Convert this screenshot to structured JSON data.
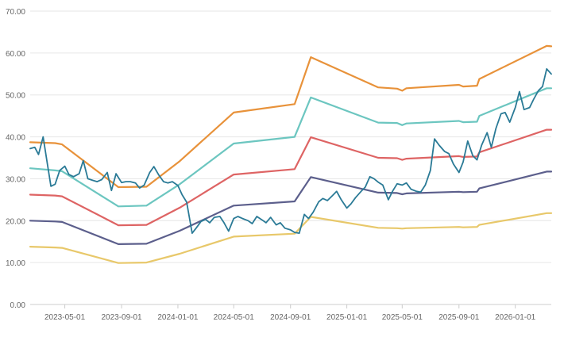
{
  "chart_data": {
    "type": "line",
    "title": "",
    "xlabel": "",
    "ylabel": "",
    "ylim": [
      0,
      70
    ],
    "xlim": [
      "2023-02-15",
      "2026-03-20"
    ],
    "grid": "horizontal",
    "y_ticks": [
      "0.00",
      "10.00",
      "20.00",
      "30.00",
      "40.00",
      "50.00",
      "60.00",
      "70.00"
    ],
    "x_ticks": [
      "2023-05-01",
      "2023-09-01",
      "2024-01-01",
      "2024-05-01",
      "2024-09-01",
      "2025-01-01",
      "2025-05-01",
      "2025-09-01",
      "2026-01-01"
    ],
    "series": [
      {
        "color": "#e8923a",
        "points": [
          [
            "2023-02-15",
            38.7
          ],
          [
            "2023-04-10",
            38.5
          ],
          [
            "2023-04-25",
            38.2
          ],
          [
            "2023-08-25",
            28.0
          ],
          [
            "2023-10-25",
            28.1
          ],
          [
            "2024-01-05",
            34.2
          ],
          [
            "2024-05-01",
            45.8
          ],
          [
            "2024-09-10",
            47.8
          ],
          [
            "2024-10-15",
            59.0
          ],
          [
            "2025-03-10",
            51.8
          ],
          [
            "2025-04-20",
            51.5
          ],
          [
            "2025-05-01",
            51.0
          ],
          [
            "2025-05-10",
            51.6
          ],
          [
            "2025-09-01",
            52.4
          ],
          [
            "2025-09-10",
            52.0
          ],
          [
            "2025-10-10",
            52.2
          ],
          [
            "2025-10-15",
            53.8
          ],
          [
            "2026-03-10",
            61.7
          ],
          [
            "2026-03-20",
            61.6
          ]
        ]
      },
      {
        "color": "#6cc6c0",
        "points": [
          [
            "2023-02-15",
            32.5
          ],
          [
            "2023-04-10",
            32.0
          ],
          [
            "2023-04-25",
            31.8
          ],
          [
            "2023-08-25",
            23.4
          ],
          [
            "2023-10-25",
            23.6
          ],
          [
            "2024-01-05",
            28.7
          ],
          [
            "2024-05-01",
            38.4
          ],
          [
            "2024-09-10",
            40.0
          ],
          [
            "2024-10-15",
            49.4
          ],
          [
            "2025-03-10",
            43.4
          ],
          [
            "2025-04-20",
            43.3
          ],
          [
            "2025-05-01",
            42.8
          ],
          [
            "2025-05-10",
            43.2
          ],
          [
            "2025-09-01",
            43.8
          ],
          [
            "2025-09-10",
            43.5
          ],
          [
            "2025-10-10",
            43.6
          ],
          [
            "2025-10-15",
            45.0
          ],
          [
            "2026-03-10",
            51.6
          ],
          [
            "2026-03-20",
            51.6
          ]
        ]
      },
      {
        "color": "#de6464",
        "points": [
          [
            "2023-02-15",
            26.2
          ],
          [
            "2023-04-10",
            26.0
          ],
          [
            "2023-04-25",
            25.8
          ],
          [
            "2023-08-25",
            18.9
          ],
          [
            "2023-10-25",
            19.0
          ],
          [
            "2024-01-05",
            23.1
          ],
          [
            "2024-05-01",
            31.0
          ],
          [
            "2024-09-10",
            32.3
          ],
          [
            "2024-10-15",
            39.9
          ],
          [
            "2025-03-10",
            35.0
          ],
          [
            "2025-04-20",
            34.9
          ],
          [
            "2025-05-01",
            34.5
          ],
          [
            "2025-05-10",
            34.8
          ],
          [
            "2025-09-01",
            35.4
          ],
          [
            "2025-09-10",
            35.2
          ],
          [
            "2025-10-10",
            35.3
          ],
          [
            "2025-10-15",
            36.3
          ],
          [
            "2026-03-10",
            41.7
          ],
          [
            "2026-03-20",
            41.7
          ]
        ]
      },
      {
        "color": "#5c5f8c",
        "points": [
          [
            "2023-02-15",
            20.0
          ],
          [
            "2023-04-10",
            19.8
          ],
          [
            "2023-04-25",
            19.7
          ],
          [
            "2023-08-25",
            14.4
          ],
          [
            "2023-10-25",
            14.5
          ],
          [
            "2024-01-05",
            17.6
          ],
          [
            "2024-05-01",
            23.6
          ],
          [
            "2024-09-10",
            24.6
          ],
          [
            "2024-10-15",
            30.4
          ],
          [
            "2025-03-10",
            26.7
          ],
          [
            "2025-04-20",
            26.6
          ],
          [
            "2025-05-01",
            26.3
          ],
          [
            "2025-05-10",
            26.5
          ],
          [
            "2025-09-01",
            26.9
          ],
          [
            "2025-09-10",
            26.8
          ],
          [
            "2025-10-10",
            26.9
          ],
          [
            "2025-10-15",
            27.7
          ],
          [
            "2026-03-10",
            31.7
          ],
          [
            "2026-03-20",
            31.7
          ]
        ]
      },
      {
        "color": "#e8c86a",
        "points": [
          [
            "2023-02-15",
            13.8
          ],
          [
            "2023-04-10",
            13.6
          ],
          [
            "2023-04-25",
            13.5
          ],
          [
            "2023-08-25",
            9.9
          ],
          [
            "2023-10-25",
            10.0
          ],
          [
            "2024-01-05",
            12.1
          ],
          [
            "2024-05-01",
            16.2
          ],
          [
            "2024-09-10",
            16.9
          ],
          [
            "2024-10-15",
            20.9
          ],
          [
            "2025-03-10",
            18.3
          ],
          [
            "2025-04-20",
            18.2
          ],
          [
            "2025-05-01",
            18.1
          ],
          [
            "2025-05-10",
            18.2
          ],
          [
            "2025-09-01",
            18.5
          ],
          [
            "2025-09-10",
            18.4
          ],
          [
            "2025-10-10",
            18.5
          ],
          [
            "2025-10-15",
            19.0
          ],
          [
            "2026-03-10",
            21.8
          ],
          [
            "2026-03-20",
            21.8
          ]
        ]
      },
      {
        "color": "#2a7a96",
        "points": [
          [
            "2023-02-15",
            37.2
          ],
          [
            "2023-02-25",
            37.5
          ],
          [
            "2023-03-05",
            35.8
          ],
          [
            "2023-03-15",
            40.0
          ],
          [
            "2023-03-25",
            33.0
          ],
          [
            "2023-04-01",
            28.2
          ],
          [
            "2023-04-10",
            28.7
          ],
          [
            "2023-04-20",
            32.0
          ],
          [
            "2023-05-01",
            33.0
          ],
          [
            "2023-05-10",
            31.0
          ],
          [
            "2023-05-20",
            30.5
          ],
          [
            "2023-06-01",
            31.2
          ],
          [
            "2023-06-10",
            34.3
          ],
          [
            "2023-06-20",
            30.0
          ],
          [
            "2023-07-01",
            29.6
          ],
          [
            "2023-07-10",
            29.3
          ],
          [
            "2023-07-20",
            29.8
          ],
          [
            "2023-08-01",
            31.5
          ],
          [
            "2023-08-10",
            27.2
          ],
          [
            "2023-08-20",
            31.2
          ],
          [
            "2023-09-01",
            29.1
          ],
          [
            "2023-09-10",
            29.3
          ],
          [
            "2023-09-20",
            29.3
          ],
          [
            "2023-10-01",
            29.0
          ],
          [
            "2023-10-10",
            27.8
          ],
          [
            "2023-10-20",
            28.5
          ],
          [
            "2023-11-01",
            31.5
          ],
          [
            "2023-11-10",
            32.9
          ],
          [
            "2023-11-20",
            31.0
          ],
          [
            "2023-12-01",
            29.3
          ],
          [
            "2023-12-10",
            29.0
          ],
          [
            "2023-12-20",
            29.3
          ],
          [
            "2024-01-01",
            28.4
          ],
          [
            "2024-01-10",
            26.2
          ],
          [
            "2024-01-20",
            24.4
          ],
          [
            "2024-02-01",
            17.0
          ],
          [
            "2024-02-10",
            18.3
          ],
          [
            "2024-02-20",
            19.8
          ],
          [
            "2024-03-01",
            20.3
          ],
          [
            "2024-03-10",
            19.5
          ],
          [
            "2024-03-20",
            20.8
          ],
          [
            "2024-04-01",
            21.0
          ],
          [
            "2024-04-10",
            19.5
          ],
          [
            "2024-04-20",
            17.5
          ],
          [
            "2024-05-01",
            20.5
          ],
          [
            "2024-05-10",
            21.0
          ],
          [
            "2024-05-20",
            20.5
          ],
          [
            "2024-06-01",
            20.0
          ],
          [
            "2024-06-10",
            19.3
          ],
          [
            "2024-06-20",
            21.0
          ],
          [
            "2024-07-01",
            20.2
          ],
          [
            "2024-07-10",
            19.5
          ],
          [
            "2024-07-20",
            20.8
          ],
          [
            "2024-08-01",
            19.0
          ],
          [
            "2024-08-10",
            19.5
          ],
          [
            "2024-08-20",
            18.2
          ],
          [
            "2024-09-01",
            17.8
          ],
          [
            "2024-09-10",
            17.2
          ],
          [
            "2024-09-20",
            17.0
          ],
          [
            "2024-10-01",
            21.5
          ],
          [
            "2024-10-10",
            20.5
          ],
          [
            "2024-10-20",
            22.0
          ],
          [
            "2024-11-01",
            24.5
          ],
          [
            "2024-11-10",
            25.3
          ],
          [
            "2024-11-20",
            24.8
          ],
          [
            "2024-12-01",
            26.0
          ],
          [
            "2024-12-10",
            27.0
          ],
          [
            "2024-12-20",
            25.0
          ],
          [
            "2025-01-01",
            23.0
          ],
          [
            "2025-01-10",
            24.0
          ],
          [
            "2025-01-20",
            25.5
          ],
          [
            "2025-02-01",
            27.0
          ],
          [
            "2025-02-10",
            28.0
          ],
          [
            "2025-02-20",
            30.5
          ],
          [
            "2025-03-01",
            30.0
          ],
          [
            "2025-03-10",
            29.2
          ],
          [
            "2025-03-20",
            28.5
          ],
          [
            "2025-04-01",
            25.0
          ],
          [
            "2025-04-10",
            27.0
          ],
          [
            "2025-04-20",
            28.8
          ],
          [
            "2025-05-01",
            28.5
          ],
          [
            "2025-05-10",
            29.0
          ],
          [
            "2025-05-20",
            27.5
          ],
          [
            "2025-06-01",
            27.0
          ],
          [
            "2025-06-10",
            26.8
          ],
          [
            "2025-06-20",
            28.5
          ],
          [
            "2025-07-01",
            32.0
          ],
          [
            "2025-07-10",
            39.5
          ],
          [
            "2025-07-20",
            38.0
          ],
          [
            "2025-08-01",
            36.5
          ],
          [
            "2025-08-10",
            36.0
          ],
          [
            "2025-08-20",
            33.5
          ],
          [
            "2025-09-01",
            31.5
          ],
          [
            "2025-09-10",
            34.0
          ],
          [
            "2025-09-20",
            39.0
          ],
          [
            "2025-10-01",
            35.5
          ],
          [
            "2025-10-10",
            34.5
          ],
          [
            "2025-10-20",
            38.0
          ],
          [
            "2025-11-01",
            41.0
          ],
          [
            "2025-11-10",
            37.5
          ],
          [
            "2025-11-20",
            42.0
          ],
          [
            "2025-12-01",
            45.5
          ],
          [
            "2025-12-10",
            45.8
          ],
          [
            "2025-12-20",
            43.5
          ],
          [
            "2026-01-01",
            47.0
          ],
          [
            "2026-01-10",
            50.8
          ],
          [
            "2026-01-20",
            46.5
          ],
          [
            "2026-02-01",
            47.0
          ],
          [
            "2026-02-10",
            49.0
          ],
          [
            "2026-02-20",
            51.0
          ],
          [
            "2026-03-01",
            52.0
          ],
          [
            "2026-03-10",
            56.2
          ],
          [
            "2026-03-20",
            55.0
          ]
        ]
      }
    ]
  }
}
